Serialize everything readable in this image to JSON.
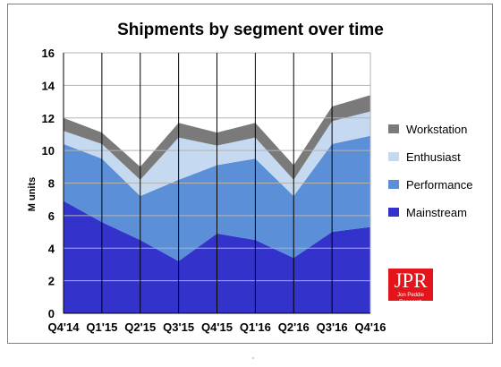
{
  "chart_data": {
    "type": "area",
    "stacked": true,
    "title": "Shipments by segment over time",
    "xlabel": "",
    "ylabel": "M units",
    "categories": [
      "Q4'14",
      "Q1'15",
      "Q2'15",
      "Q3'15",
      "Q4'15",
      "Q1'16",
      "Q2'16",
      "Q3'16",
      "Q4'16"
    ],
    "ylim": [
      0,
      16
    ],
    "yticks": [
      0,
      2,
      4,
      6,
      8,
      10,
      12,
      14,
      16
    ],
    "grid": "y and x",
    "legend_position": "right",
    "series": [
      {
        "name": "Mainstream",
        "color": "#3333cc",
        "values": [
          6.9,
          5.6,
          4.5,
          3.2,
          4.9,
          4.5,
          3.4,
          5.0,
          5.3
        ]
      },
      {
        "name": "Performance",
        "color": "#5b8fd8",
        "values": [
          3.5,
          3.9,
          2.7,
          5.0,
          4.2,
          5.0,
          3.8,
          5.4,
          5.6
        ]
      },
      {
        "name": "Enthusiast",
        "color": "#c5d9f1",
        "values": [
          0.8,
          0.9,
          1.0,
          2.6,
          1.2,
          1.3,
          1.0,
          1.4,
          1.5
        ]
      },
      {
        "name": "Workstation",
        "color": "#7a7a7a",
        "values": [
          0.8,
          0.7,
          0.8,
          0.9,
          0.8,
          0.9,
          0.9,
          0.9,
          1.0
        ]
      }
    ]
  },
  "logo": {
    "letters": "JPR",
    "name": "Jon Peddie Research",
    "color": "#e4141b"
  }
}
